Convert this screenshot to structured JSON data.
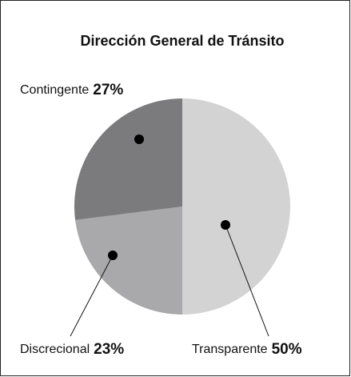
{
  "chart_data": {
    "type": "pie",
    "title": "Dirección General de Tránsito",
    "categories": [
      "Transparente",
      "Discrecional",
      "Contingente"
    ],
    "values": [
      50,
      23,
      27
    ],
    "value_labels": [
      "50%",
      "23%",
      "27%"
    ],
    "colors": [
      "#d3d3d4",
      "#a9a9ab",
      "#7b7b7d"
    ]
  }
}
